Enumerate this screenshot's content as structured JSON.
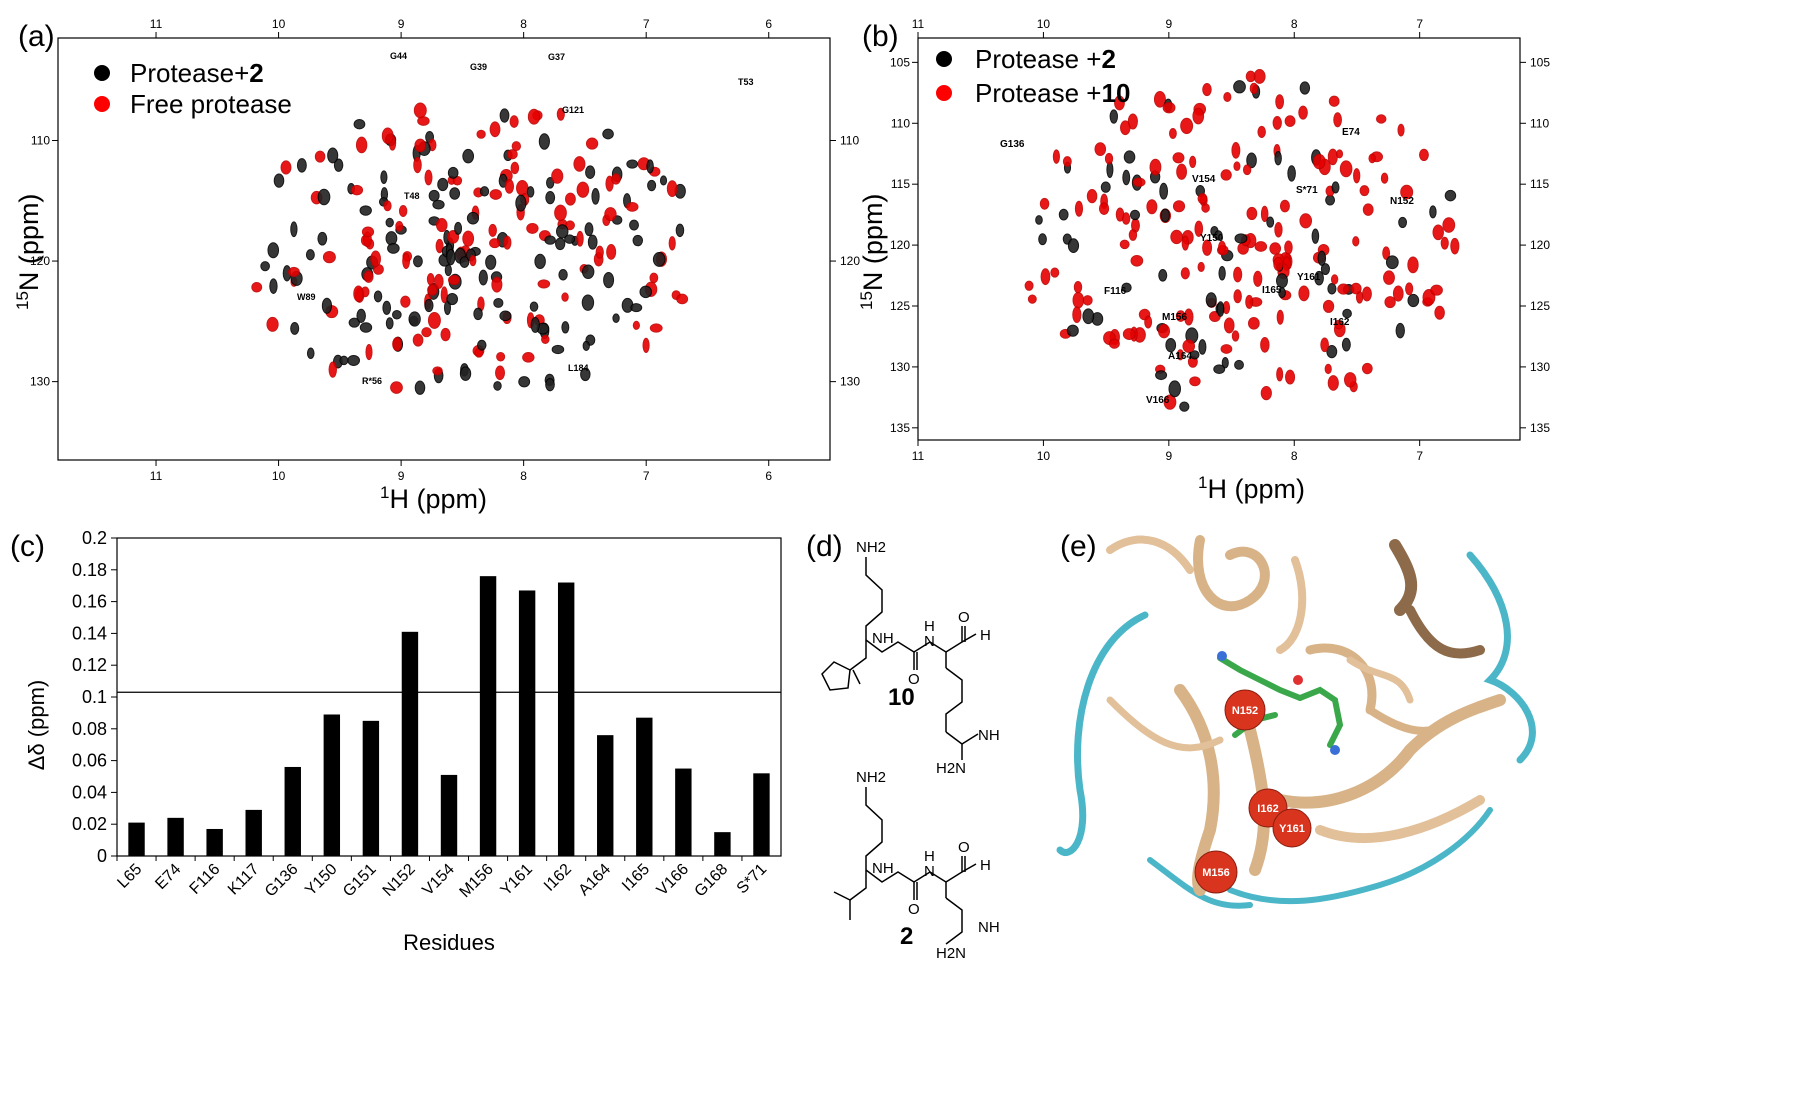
{
  "panels": {
    "a": {
      "letter": "(a)",
      "legend": [
        {
          "label": "Protease+",
          "bold_suffix": "2",
          "color": "#000000"
        },
        {
          "label": "Free protease",
          "bold_suffix": "",
          "color": "#ff0000"
        }
      ],
      "x_ticks": [
        "11",
        "10",
        "9",
        "8",
        "7",
        "6"
      ],
      "y_ticks": [
        "110",
        "120",
        "130"
      ],
      "xlabel_sup": "1",
      "xlabel": "H (ppm)",
      "ylabel_sup": "15",
      "ylabel": "N (ppm)",
      "peak_labels": [
        "G44",
        "G39",
        "G37",
        "T53",
        "G121",
        "T48",
        "W89",
        "R*56",
        "L184"
      ]
    },
    "b": {
      "letter": "(b)",
      "legend": [
        {
          "label": "Protease +",
          "bold_suffix": "2",
          "color": "#000000"
        },
        {
          "label": "Protease +",
          "bold_suffix": "10",
          "color": "#ff0000"
        }
      ],
      "x_ticks": [
        "11",
        "10",
        "9",
        "8",
        "7"
      ],
      "y_ticks": [
        "105",
        "110",
        "115",
        "120",
        "125",
        "130",
        "135"
      ],
      "xlabel_sup": "1",
      "xlabel": "H (ppm)",
      "ylabel_sup": "15",
      "ylabel": "N (ppm)",
      "peak_labels": [
        "G136",
        "E74",
        "V154",
        "S*71",
        "N152",
        "Y150",
        "Y161",
        "F116",
        "I165",
        "I162",
        "M156",
        "A164",
        "V166"
      ]
    },
    "c": {
      "letter": "(c)",
      "chart_data": {
        "type": "bar",
        "categories": [
          "L65",
          "E74",
          "F116",
          "K117",
          "G136",
          "Y150",
          "G151",
          "N152",
          "V154",
          "M156",
          "Y161",
          "I162",
          "A164",
          "I165",
          "V166",
          "G168",
          "S*71"
        ],
        "values": [
          0.021,
          0.024,
          0.017,
          0.029,
          0.056,
          0.089,
          0.085,
          0.141,
          0.051,
          0.176,
          0.167,
          0.172,
          0.076,
          0.087,
          0.055,
          0.015,
          0.052
        ],
        "ylim": [
          0,
          0.2
        ],
        "yticks": [
          "0",
          "0.02",
          "0.04",
          "0.06",
          "0.08",
          "0.1",
          "0.12",
          "0.14",
          "0.16",
          "0.18",
          "0.2"
        ],
        "threshold": 0.103,
        "ylabel": "Δδ (ppm)",
        "xlabel": "Residues"
      }
    },
    "d": {
      "letter": "(d)",
      "compounds": [
        {
          "id": "10",
          "nh2_top": "NH2",
          "guanidine": "H2N",
          "nh": "NH",
          "atoms": [
            "NH",
            "N",
            "H",
            "O",
            "O",
            "H"
          ]
        },
        {
          "id": "2",
          "nh2_top": "NH2",
          "guanidine": "H2N",
          "nh": "NH",
          "atoms": [
            "NH",
            "N",
            "H",
            "O",
            "O",
            "H"
          ]
        }
      ]
    },
    "e": {
      "letter": "(e)",
      "residue_labels": [
        "N152",
        "I162",
        "Y161",
        "M156"
      ]
    }
  }
}
